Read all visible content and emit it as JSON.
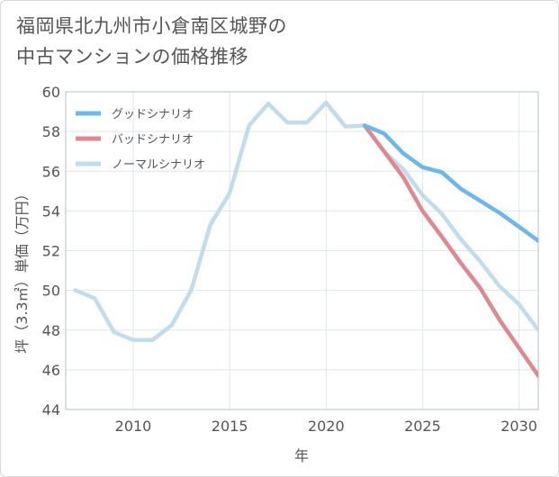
{
  "title_lines": [
    "福岡県北九州市小倉南区城野の",
    "中古マンションの価格推移"
  ],
  "chart_data": {
    "type": "line",
    "title": "福岡県北九州市小倉南区城野の中古マンションの価格推移",
    "xlabel": "年",
    "ylabel": "坪（3.3㎡）単価（万円）",
    "xlim": [
      2006.5,
      2031
    ],
    "ylim": [
      44,
      60
    ],
    "xticks": [
      2010,
      2015,
      2020,
      2025,
      2030
    ],
    "yticks": [
      44,
      46,
      48,
      50,
      52,
      54,
      56,
      58,
      60
    ],
    "grid": true,
    "legend_position": "top-left",
    "series": [
      {
        "name": "グッドシナリオ",
        "color": "#6cb8ee",
        "x": [
          2022,
          2023,
          2024,
          2025,
          2026,
          2027,
          2028,
          2029,
          2030,
          2031
        ],
        "y": [
          58.3,
          57.9,
          56.9,
          56.2,
          55.95,
          55.1,
          54.5,
          53.9,
          53.2,
          52.5
        ]
      },
      {
        "name": "バッドシナリオ",
        "color": "#e08890",
        "x": [
          2022,
          2023,
          2024,
          2025,
          2026,
          2027,
          2028,
          2029,
          2030,
          2031
        ],
        "y": [
          58.3,
          57.0,
          55.7,
          54.0,
          52.7,
          51.35,
          50.1,
          48.5,
          47.1,
          45.7
        ]
      },
      {
        "name": "ノーマルシナリオ",
        "color": "#c1dded",
        "x": [
          2007,
          2008,
          2009,
          2010,
          2011,
          2012,
          2013,
          2014,
          2015,
          2016,
          2017,
          2018,
          2019,
          2020,
          2021,
          2022,
          2023,
          2024,
          2025,
          2026,
          2027,
          2028,
          2029,
          2030,
          2031
        ],
        "y": [
          50.0,
          49.6,
          47.9,
          47.5,
          47.5,
          48.25,
          50.0,
          53.3,
          54.9,
          58.3,
          59.4,
          58.45,
          58.45,
          59.45,
          58.25,
          58.3,
          57.0,
          56.1,
          54.8,
          53.85,
          52.55,
          51.45,
          50.2,
          49.3,
          48.0
        ]
      }
    ]
  }
}
